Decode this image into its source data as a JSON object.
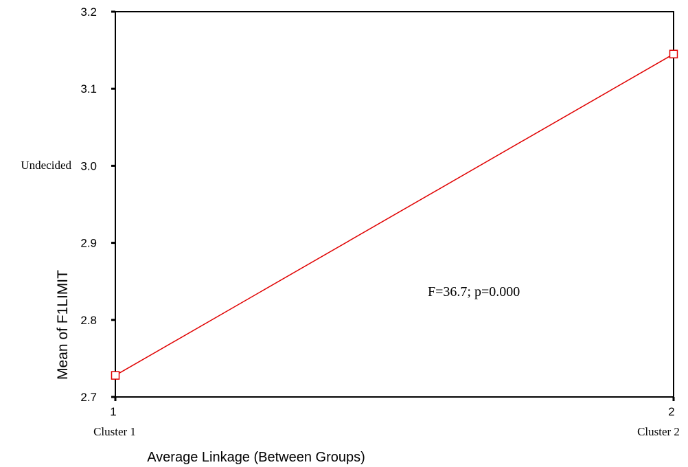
{
  "chart_data": {
    "type": "line",
    "xlabel": "Average Linkage (Between Groups)",
    "ylabel": "Mean of F1LIMIT",
    "ylim": [
      2.7,
      3.2
    ],
    "yticks": [
      "2.7",
      "2.8",
      "2.9",
      "3.0",
      "3.1",
      "3.2"
    ],
    "x": [
      1,
      2
    ],
    "xtick_numbers": [
      "1",
      "2"
    ],
    "categories": [
      "Cluster 1",
      "Cluster 2"
    ],
    "series": [
      {
        "values": [
          2.728,
          3.145
        ],
        "color": "#e00000",
        "marker": "open-square"
      }
    ],
    "annotations": {
      "stat": "F=36.7; p=0.000",
      "y_reference_label": "Undecided",
      "y_reference_value": 3.0
    },
    "grid": false,
    "legend": "none"
  }
}
